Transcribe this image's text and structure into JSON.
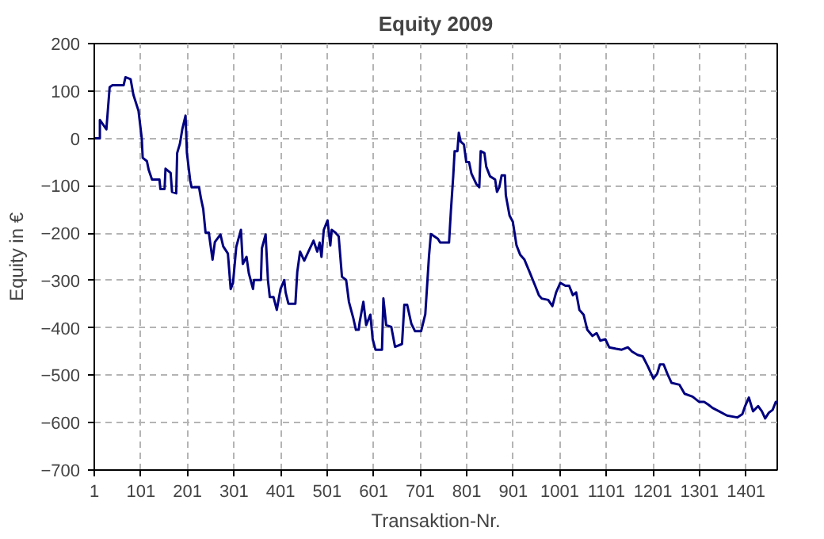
{
  "chart_data": {
    "type": "line",
    "title": "Equity 2009",
    "xlabel": "Transaktion-Nr.",
    "ylabel": "Equity in €",
    "xlim": [
      1,
      1468
    ],
    "xticks": [
      1,
      101,
      201,
      301,
      401,
      501,
      601,
      701,
      801,
      901,
      1001,
      1101,
      1201,
      1301,
      1401
    ],
    "ylim": [
      -700,
      200
    ],
    "yticks": [
      -700,
      -600,
      -500,
      -400,
      -300,
      -200,
      -100,
      0,
      100,
      200
    ],
    "grid": true,
    "marker": "none",
    "line_style": "solid",
    "series": [
      {
        "color": "#000080",
        "x": [
          1,
          13,
          13,
          27,
          34,
          40,
          64,
          68,
          79,
          85,
          96,
          103,
          105,
          114,
          118,
          125,
          141,
          143,
          152,
          154,
          165,
          168,
          177,
          179,
          185,
          190,
          197,
          200,
          207,
          210,
          226,
          230,
          235,
          240,
          247,
          255,
          260,
          272,
          278,
          288,
          294,
          299,
          306,
          316,
          320,
          328,
          333,
          342,
          344,
          359,
          361,
          369,
          374,
          378,
          386,
          393,
          401,
          409,
          412,
          418,
          433,
          437,
          443,
          452,
          461,
          472,
          480,
          485,
          489,
          494,
          502,
          508,
          511,
          519,
          526,
          533,
          542,
          548,
          557,
          563,
          569,
          571,
          579,
          585,
          594,
          599,
          605,
          619,
          622,
          628,
          639,
          647,
          662,
          667,
          673,
          682,
          690,
          703,
          712,
          720,
          724,
          739,
          744,
          763,
          767,
          772,
          775,
          781,
          784,
          788,
          795,
          800,
          806,
          811,
          822,
          828,
          831,
          839,
          843,
          851,
          862,
          866,
          871,
          876,
          883,
          885,
          893,
          900,
          908,
          916,
          925,
          936,
          948,
          956,
          962,
          976,
          985,
          993,
          1002,
          1013,
          1021,
          1029,
          1036,
          1043,
          1052,
          1060,
          1071,
          1080,
          1088,
          1099,
          1107,
          1122,
          1134,
          1147,
          1156,
          1168,
          1179,
          1190,
          1202,
          1210,
          1216,
          1224,
          1232,
          1241,
          1258,
          1269,
          1286,
          1300,
          1311,
          1320,
          1329,
          1343,
          1360,
          1382,
          1393,
          1399,
          1407,
          1416,
          1427,
          1435,
          1442,
          1450,
          1458,
          1465,
          1468
        ],
        "values": [
          0,
          0,
          39,
          19,
          108,
          112,
          112,
          129,
          125,
          92,
          58,
          0,
          -41,
          -48,
          -67,
          -87,
          -87,
          -107,
          -107,
          -64,
          -73,
          -113,
          -116,
          -31,
          -11,
          19,
          48,
          -31,
          -89,
          -103,
          -103,
          -126,
          -149,
          -199,
          -199,
          -256,
          -219,
          -203,
          -228,
          -243,
          -318,
          -305,
          -229,
          -193,
          -265,
          -250,
          -285,
          -318,
          -299,
          -299,
          -232,
          -203,
          -299,
          -335,
          -335,
          -362,
          -318,
          -299,
          -325,
          -349,
          -349,
          -282,
          -239,
          -258,
          -239,
          -216,
          -239,
          -220,
          -250,
          -193,
          -173,
          -226,
          -193,
          -199,
          -207,
          -292,
          -299,
          -345,
          -378,
          -404,
          -404,
          -388,
          -345,
          -394,
          -372,
          -424,
          -446,
          -446,
          -338,
          -394,
          -398,
          -440,
          -434,
          -351,
          -351,
          -391,
          -407,
          -407,
          -371,
          -248,
          -202,
          -212,
          -220,
          -220,
          -153,
          -80,
          -27,
          -27,
          12,
          -7,
          -13,
          -50,
          -50,
          -74,
          -97,
          -103,
          -27,
          -31,
          -60,
          -80,
          -87,
          -113,
          -103,
          -78,
          -78,
          -120,
          -163,
          -176,
          -226,
          -246,
          -256,
          -282,
          -311,
          -331,
          -338,
          -341,
          -354,
          -325,
          -305,
          -311,
          -311,
          -331,
          -325,
          -362,
          -372,
          -404,
          -417,
          -411,
          -427,
          -424,
          -441,
          -444,
          -446,
          -441,
          -450,
          -457,
          -460,
          -481,
          -507,
          -497,
          -477,
          -477,
          -497,
          -516,
          -520,
          -539,
          -545,
          -556,
          -556,
          -562,
          -569,
          -576,
          -585,
          -589,
          -582,
          -565,
          -547,
          -576,
          -565,
          -576,
          -591,
          -579,
          -573,
          -556,
          -556
        ]
      }
    ]
  }
}
